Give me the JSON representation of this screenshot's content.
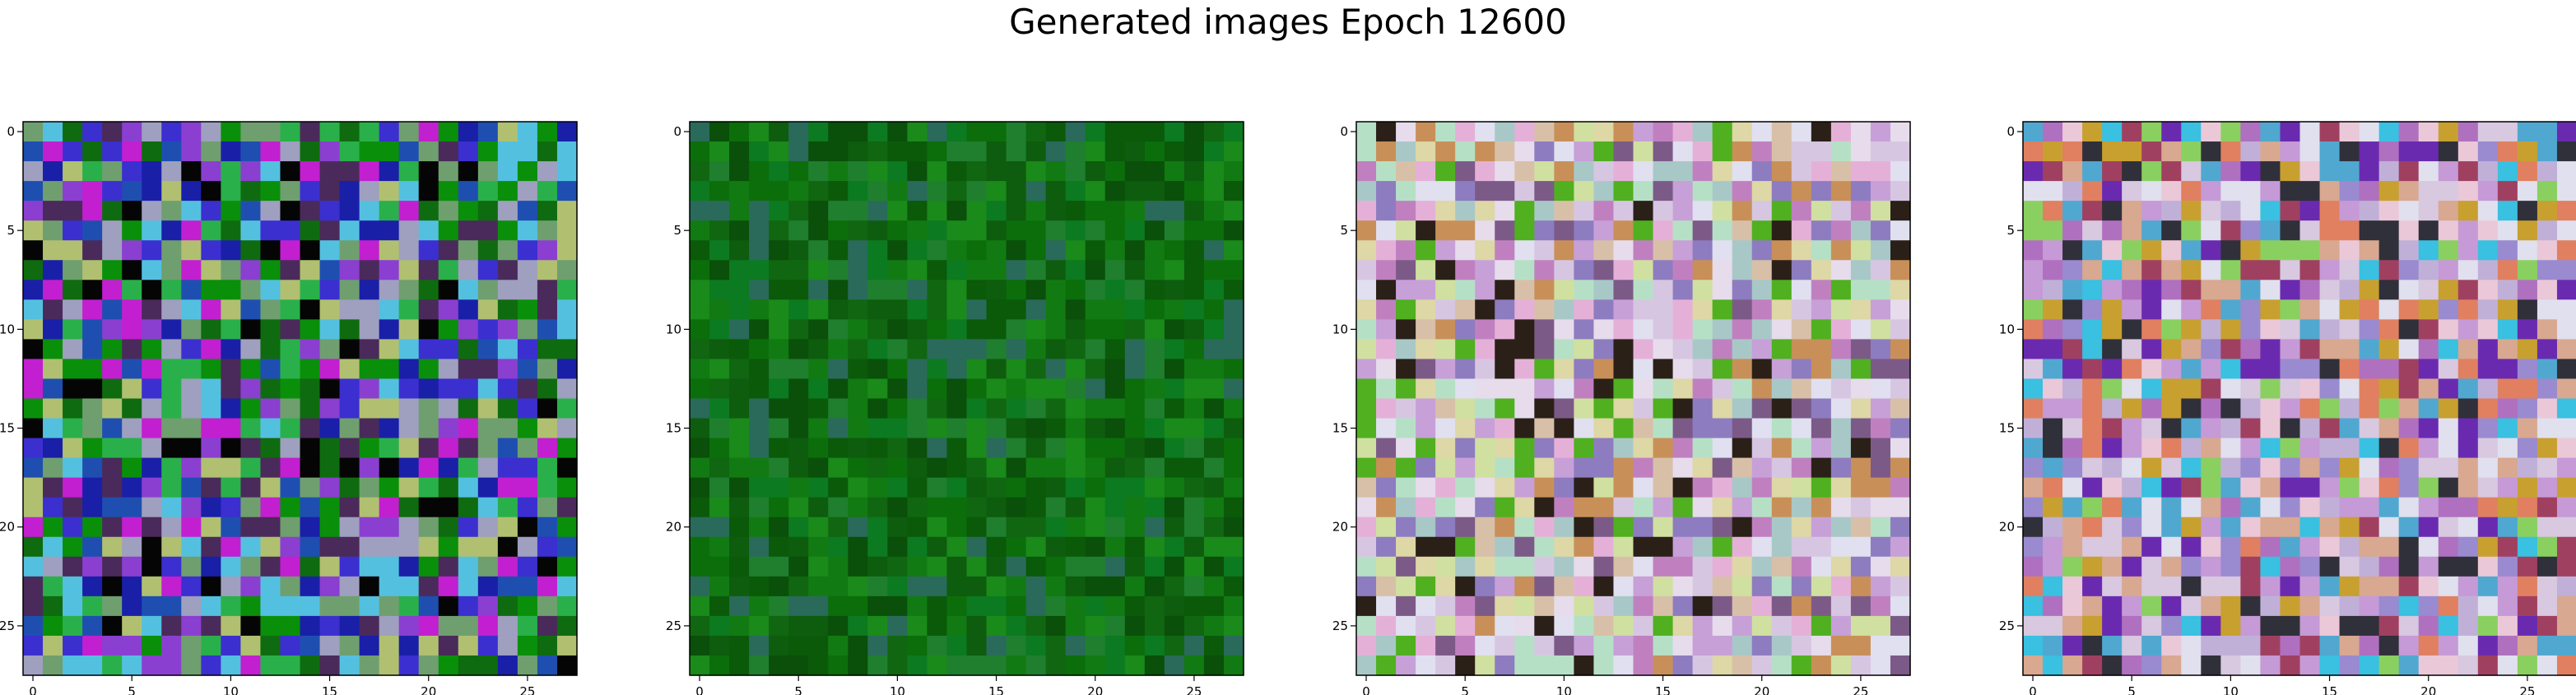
{
  "figure": {
    "title": "Generated images Epoch 12600"
  },
  "chart_data": {
    "type": "heatmap",
    "title": "Generated images Epoch 12600",
    "grid": false,
    "image_size": 28,
    "xlim": [
      -0.5,
      27.5
    ],
    "ylim": [
      27.5,
      -0.5
    ],
    "x_ticks": [
      0,
      5,
      10,
      15,
      20,
      25
    ],
    "y_ticks": [
      0,
      5,
      10,
      15,
      20,
      25
    ],
    "panels": [
      {
        "index": 1,
        "palette": [
          "#0a8f0a",
          "#0f6b0f",
          "#1a1fa8",
          "#3b2fd0",
          "#8a3fd0",
          "#c21fd0",
          "#6f9f6f",
          "#9f9fbf",
          "#050505",
          "#2ab04a",
          "#54c0e0",
          "#1e4fb0",
          "#b0c070",
          "#4a2a5a"
        ]
      },
      {
        "index": 2,
        "palette": [
          "#0b6e0b",
          "#0e5c0e",
          "#127a12",
          "#0a4f0a",
          "#1a8a1a",
          "#116611",
          "#0c7a20",
          "#1f7f2f",
          "#2a6a5a",
          "#0a5a0a"
        ]
      },
      {
        "index": 3,
        "palette": [
          "#e6dcec",
          "#d7c6e2",
          "#c7a0d8",
          "#ded7a6",
          "#b6e0c6",
          "#e5b0d8",
          "#a8c8c8",
          "#c080c0",
          "#d0e0a0",
          "#c89058",
          "#8e7cc0",
          "#50b020",
          "#e0e0f0",
          "#d8c0a8",
          "#7c5a88",
          "#2a2018"
        ]
      },
      {
        "index": 4,
        "palette": [
          "#d8c8e0",
          "#c69ad6",
          "#9a8ad0",
          "#e0e0ee",
          "#c0b0d8",
          "#d8a890",
          "#3ac0e0",
          "#6a2ab0",
          "#e08060",
          "#b070c0",
          "#50a8d0",
          "#c8a030",
          "#30303a",
          "#a04060",
          "#8ad060",
          "#eac8d8"
        ]
      }
    ]
  }
}
